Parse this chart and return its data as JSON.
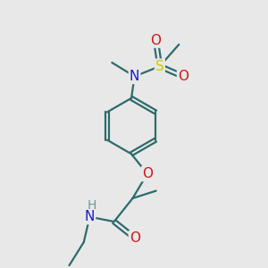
{
  "background_color": "#e8e8e8",
  "bond_color": "#2d6b6b",
  "bond_width": 1.6,
  "atom_colors": {
    "N": "#1a1acc",
    "O": "#cc1a1a",
    "S": "#cccc00",
    "H": "#6a9a9a",
    "C": "#2d6b6b"
  },
  "font_size_atoms": 11,
  "font_size_h": 10
}
